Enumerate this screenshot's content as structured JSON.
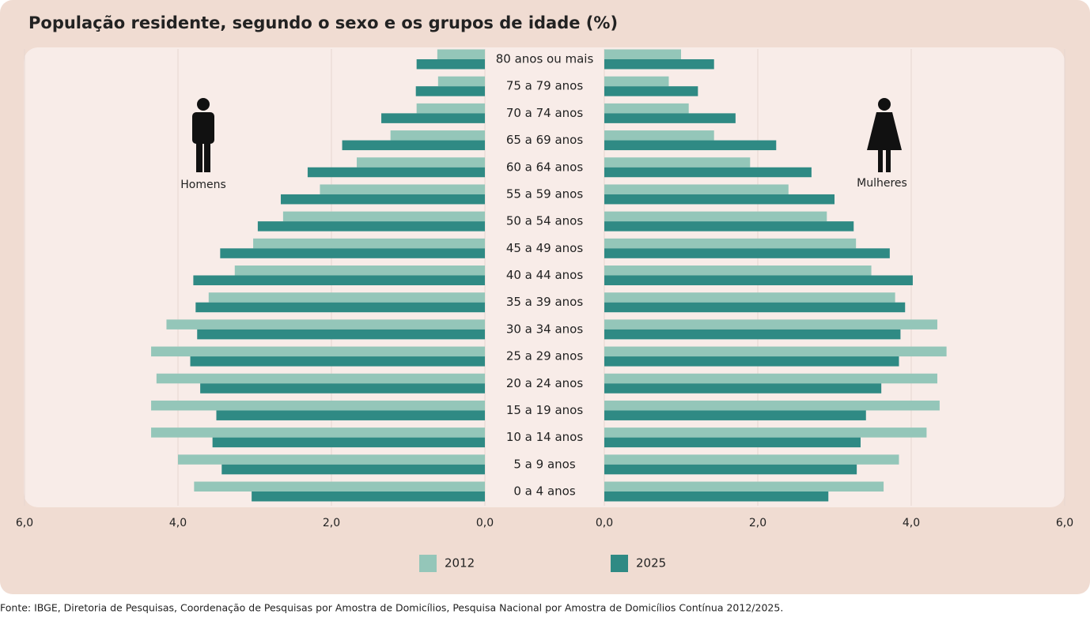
{
  "chart_data": {
    "type": "pyramid",
    "title": "População residente, segundo o sexo e os grupos de idade (%)",
    "categories": [
      "0 a 4 anos",
      "5 a 9 anos",
      "10 a 14 anos",
      "15 a 19 anos",
      "20 a 24 anos",
      "25 a 29 anos",
      "30 a 34 anos",
      "35 a 39 anos",
      "40 a 44 anos",
      "45 a 49 anos",
      "50 a 54 anos",
      "55 a 59 anos",
      "60 a 64 anos",
      "65 a 69 anos",
      "70 a 74 anos",
      "75 a 79 anos",
      "80 anos ou mais"
    ],
    "legend": [
      {
        "name": "2012",
        "color": "#94c6b9"
      },
      {
        "name": "2025",
        "color": "#2f8a84"
      }
    ],
    "grid": true,
    "panels": [
      {
        "label": "Homens",
        "xlim": [
          0,
          6
        ],
        "xticks": [
          {
            "value": 0,
            "label": "0,0"
          },
          {
            "value": 2,
            "label": "2,0"
          },
          {
            "value": 4,
            "label": "4,0"
          },
          {
            "value": 6,
            "label": "6,0"
          }
        ],
        "series": [
          {
            "values": [
              3.79,
              4.0,
              4.35,
              4.35,
              4.28,
              4.35,
              4.15,
              3.6,
              3.26,
              3.02,
              2.63,
              2.15,
              1.67,
              1.23,
              0.89,
              0.61,
              0.62
            ]
          },
          {
            "values": [
              3.04,
              3.43,
              3.55,
              3.5,
              3.71,
              3.84,
              3.75,
              3.77,
              3.8,
              3.45,
              2.96,
              2.66,
              2.31,
              1.86,
              1.35,
              0.9,
              0.89
            ]
          }
        ]
      },
      {
        "label": "Mulheres",
        "xlim": [
          0,
          6
        ],
        "xticks": [
          {
            "value": 0,
            "label": "0,0"
          },
          {
            "value": 2,
            "label": "2,0"
          },
          {
            "value": 4,
            "label": "4,0"
          },
          {
            "value": 6,
            "label": "6,0"
          }
        ],
        "series": [
          {
            "values": [
              3.64,
              3.84,
              4.2,
              4.37,
              4.34,
              4.46,
              4.34,
              3.79,
              3.48,
              3.28,
              2.9,
              2.4,
              1.9,
              1.43,
              1.1,
              0.84,
              1.0
            ]
          },
          {
            "values": [
              2.92,
              3.29,
              3.34,
              3.41,
              3.61,
              3.84,
              3.86,
              3.92,
              4.02,
              3.72,
              3.25,
              3.0,
              2.7,
              2.24,
              1.71,
              1.22,
              1.43
            ]
          }
        ]
      }
    ],
    "source": "Fonte: IBGE, Diretoria de Pesquisas, Coordenação de Pesquisas por Amostra de Domicílios, Pesquisa Nacional por Amostra de Domicílios Contínua 2012/2025."
  }
}
